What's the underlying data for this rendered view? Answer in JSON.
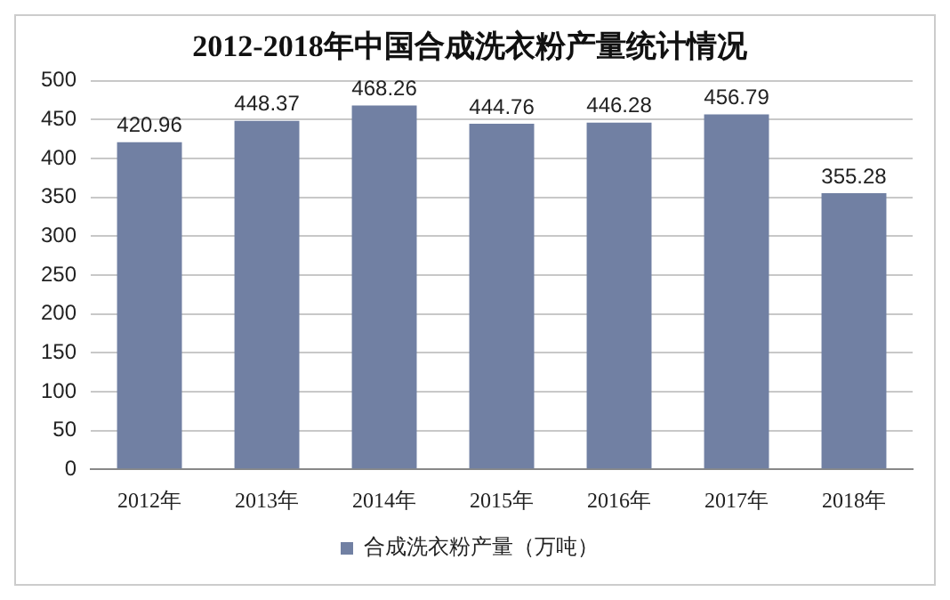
{
  "chart_data": {
    "type": "bar",
    "title": "2012-2018年中国合成洗衣粉产量统计情况",
    "categories": [
      "2012年",
      "2013年",
      "2014年",
      "2015年",
      "2016年",
      "2017年",
      "2018年"
    ],
    "series": [
      {
        "name": "合成洗衣粉产量（万吨）",
        "color": "#7180a3",
        "values": [
          420.96,
          448.37,
          468.26,
          444.76,
          446.28,
          456.79,
          355.28
        ]
      }
    ],
    "ylim": [
      0,
      500
    ],
    "yticks": [
      0,
      50,
      100,
      150,
      200,
      250,
      300,
      350,
      400,
      450,
      500
    ],
    "grid": "y",
    "legend": "bottom",
    "data_labels": true
  }
}
